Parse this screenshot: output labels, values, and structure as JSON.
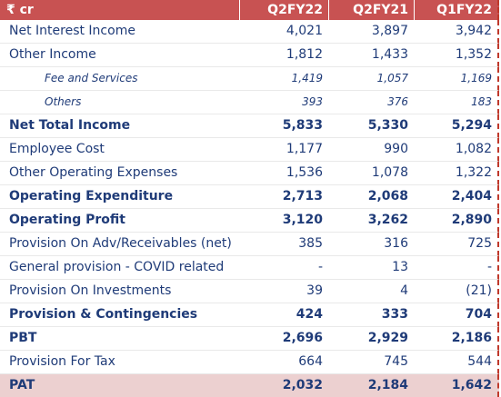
{
  "header": {
    "label": "₹ cr",
    "columns": [
      "Q2FY22",
      "Q2FY21",
      "Q1FY22"
    ]
  },
  "rows": [
    {
      "label": "Net Interest Income",
      "values": [
        "4,021",
        "3,897",
        "3,942"
      ]
    },
    {
      "label": "Other Income",
      "values": [
        "1,812",
        "1,433",
        "1,352"
      ]
    },
    {
      "label": "Fee and Services",
      "values": [
        "1,419",
        "1,057",
        "1,169"
      ]
    },
    {
      "label": "Others",
      "values": [
        "393",
        "376",
        "183"
      ]
    },
    {
      "label": "Net Total Income",
      "values": [
        "5,833",
        "5,330",
        "5,294"
      ]
    },
    {
      "label": "Employee Cost",
      "values": [
        "1,177",
        "990",
        "1,082"
      ]
    },
    {
      "label": "Other Operating Expenses",
      "values": [
        "1,536",
        "1,078",
        "1,322"
      ]
    },
    {
      "label": "Operating Expenditure",
      "values": [
        "2,713",
        "2,068",
        "2,404"
      ]
    },
    {
      "label": "Operating Profit",
      "values": [
        "3,120",
        "3,262",
        "2,890"
      ]
    },
    {
      "label": "Provision On Adv/Receivables (net)",
      "values": [
        "385",
        "316",
        "725"
      ]
    },
    {
      "label": "General provision - COVID related",
      "values": [
        "-",
        "13",
        "-"
      ]
    },
    {
      "label": "Provision On Investments",
      "values": [
        "39",
        "4",
        "(21)"
      ]
    },
    {
      "label": "Provision & Contingencies",
      "values": [
        "424",
        "333",
        "704"
      ]
    },
    {
      "label": "PBT",
      "values": [
        "2,696",
        "2,929",
        "2,186"
      ]
    },
    {
      "label": "Provision For Tax",
      "values": [
        "664",
        "745",
        "544"
      ]
    },
    {
      "label": "PAT",
      "values": [
        "2,032",
        "2,184",
        "1,642"
      ]
    }
  ]
}
